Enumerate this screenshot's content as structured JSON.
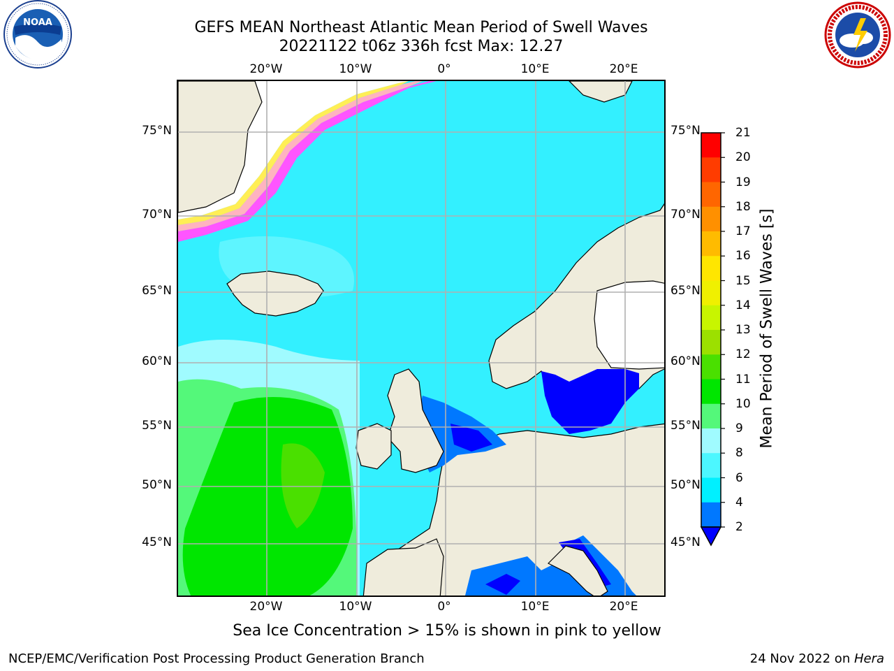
{
  "header": {
    "title_line1": "GEFS MEAN Northeast Atlantic Mean Period of Swell Waves",
    "title_line2": "20221122 t06z 336h fcst   Max: 12.27"
  },
  "logos": {
    "left": {
      "name": "noaa-logo",
      "text": "NOAA",
      "ring_text": "NATIONAL OCEANIC AND ATMOSPHERIC ADMINISTRATION · U.S. DEPARTMENT OF COMMERCE"
    },
    "right": {
      "name": "nws-logo",
      "ring_text": "NATIONAL WEATHER SERVICE"
    }
  },
  "map": {
    "lon_labels": [
      "20°W",
      "10°W",
      "0°",
      "10°E",
      "20°E"
    ],
    "lat_labels": [
      "75°N",
      "70°N",
      "65°N",
      "60°N",
      "55°N",
      "50°N",
      "45°N"
    ],
    "colors": {
      "ocean_base": "#33f0ff",
      "land": "#efecdc",
      "gridline": "#b0b0b0",
      "coastline": "#000000"
    }
  },
  "colorbar": {
    "title": "Mean Period of Swell Waves [s]",
    "ticks": [
      "2",
      "4",
      "6",
      "8",
      "9",
      "10",
      "11",
      "12",
      "13",
      "14",
      "15",
      "16",
      "17",
      "18",
      "19",
      "20",
      "21"
    ],
    "colors": [
      "#0000ff",
      "#0078ff",
      "#00f0ff",
      "#4cf7ff",
      "#a0fbff",
      "#54f87a",
      "#00e600",
      "#4ae000",
      "#9ce000",
      "#c8f500",
      "#f0f000",
      "#ffe600",
      "#ffbb00",
      "#ff9000",
      "#ff6600",
      "#ff3c00",
      "#ff0000"
    ]
  },
  "footer": {
    "sea_ice_note": "Sea Ice Concentration > 15% is shown in pink to yellow",
    "left": "NCEP/EMC/Verification Post Processing Product Generation Branch",
    "right_prefix": "24 Nov 2022 on ",
    "right_host": "Hera"
  }
}
